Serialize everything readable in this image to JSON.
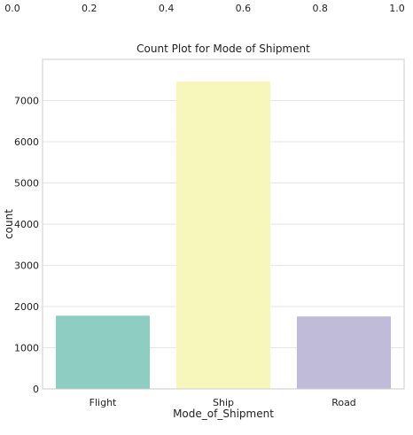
{
  "top_axis": {
    "ticks": [
      "0.0",
      "0.2",
      "0.4",
      "0.6",
      "0.8",
      "1.0"
    ]
  },
  "chart_data": {
    "type": "bar",
    "title": "Count Plot for Mode of Shipment",
    "xlabel": "Mode_of_Shipment",
    "ylabel": "count",
    "categories": [
      "Flight",
      "Ship",
      "Road"
    ],
    "values": [
      1777,
      7462,
      1760
    ],
    "ylim": [
      0,
      8000
    ],
    "yticks": [
      0,
      1000,
      2000,
      3000,
      4000,
      5000,
      6000,
      7000
    ],
    "colors": [
      "#8ecdc1",
      "#f8f7bb",
      "#bfbbd9"
    ],
    "grid": "horizontal"
  },
  "colors": {
    "grid": "#e6e6e6",
    "axis_frame": "#cccccc",
    "text": "#222222"
  }
}
